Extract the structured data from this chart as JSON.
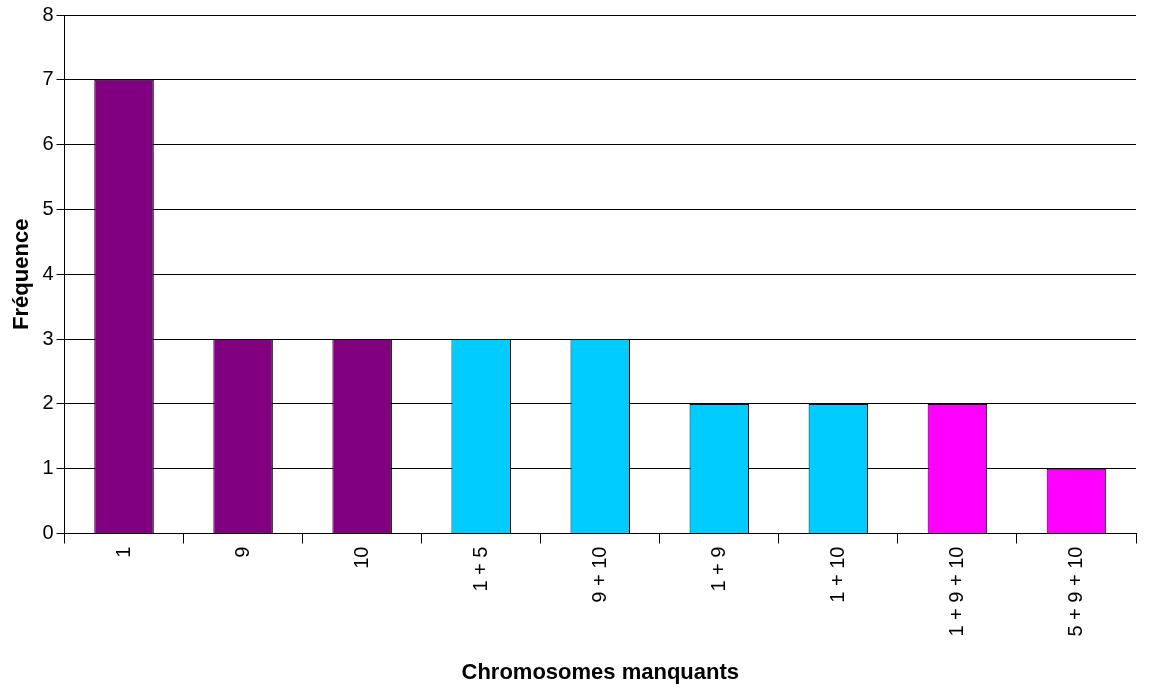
{
  "chart_data": {
    "type": "bar",
    "xlabel": "Chromosomes manquants",
    "ylabel": "Fréquence",
    "categories": [
      "1",
      "9",
      "10",
      "1 + 5",
      "9 + 10",
      "1 + 9",
      "1 + 10",
      "1 + 9 + 10",
      "5 + 9 + 10"
    ],
    "values": [
      7,
      3,
      3,
      3,
      3,
      2,
      2,
      2,
      1
    ],
    "colors": [
      "#800080",
      "#800080",
      "#800080",
      "#00ccff",
      "#00ccff",
      "#00ccff",
      "#00ccff",
      "#ff00ff",
      "#ff00ff"
    ],
    "ylim": [
      0,
      8
    ],
    "yticks": [
      0,
      1,
      2,
      3,
      4,
      5,
      6,
      7,
      8
    ],
    "grid": "y",
    "legend": false
  }
}
